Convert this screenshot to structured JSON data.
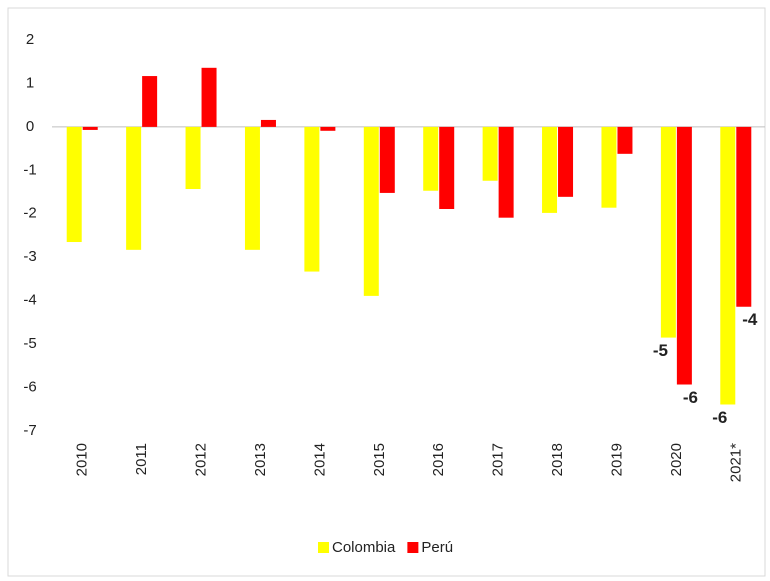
{
  "chart_data": {
    "type": "bar",
    "categories": [
      "2010",
      "2011",
      "2012",
      "2013",
      "2014",
      "2015",
      "2016",
      "2017",
      "2018",
      "2019",
      "2020",
      "2021*"
    ],
    "series": [
      {
        "name": "Colombia",
        "color": "#ffff00",
        "values": [
          -2.65,
          -2.83,
          -1.43,
          -2.83,
          -3.33,
          -3.89,
          -1.47,
          -1.24,
          -1.98,
          -1.86,
          -4.85,
          -6.39
        ],
        "value_labels": [
          null,
          null,
          null,
          null,
          null,
          null,
          null,
          null,
          null,
          null,
          "-5",
          "-6"
        ]
      },
      {
        "name": "Perú",
        "color": "#ff0000",
        "values": [
          -0.07,
          1.17,
          1.36,
          0.16,
          -0.09,
          -1.52,
          -1.89,
          -2.09,
          -1.61,
          -0.62,
          -5.93,
          -4.14
        ],
        "value_labels": [
          null,
          null,
          null,
          null,
          null,
          null,
          null,
          null,
          null,
          null,
          "-6",
          "-4"
        ]
      }
    ],
    "ylim": [
      -7,
      2
    ],
    "yticks": [
      2,
      1,
      0,
      -1,
      -2,
      -3,
      -4,
      -5,
      -6,
      -7
    ],
    "grid": false,
    "legend": "bottom"
  }
}
